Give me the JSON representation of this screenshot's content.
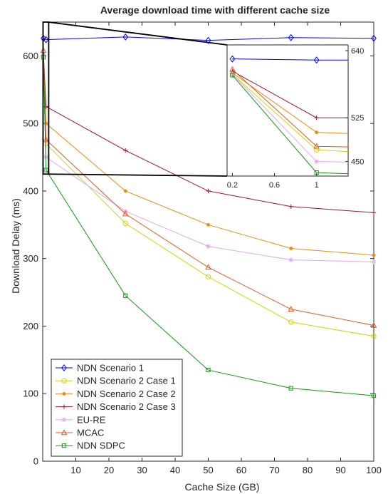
{
  "chart_data": {
    "type": "line",
    "title": "Average download time with different cache size",
    "xlabel": "Cache Size (GB)",
    "ylabel": "Download Delay (ms)",
    "xlim": [
      0,
      100
    ],
    "ylim": [
      0,
      650
    ],
    "xticks": [
      10,
      20,
      30,
      40,
      50,
      60,
      70,
      80,
      90,
      100
    ],
    "yticks": [
      0,
      100,
      200,
      300,
      400,
      500,
      600
    ],
    "grid": false,
    "legend_position": "bottom-left",
    "x": [
      0.2,
      1,
      25,
      50,
      75,
      100
    ],
    "series": [
      {
        "name": "NDN Scenario 1",
        "color": "#0000ff",
        "marker": "diamond",
        "values": [
          626,
          624,
          628,
          623,
          627,
          626
        ]
      },
      {
        "name": "NDN Scenario 2 Case 1",
        "color": "#d4d400",
        "marker": "circle",
        "values": [
          600,
          470,
          352,
          273,
          206,
          185
        ]
      },
      {
        "name": "NDN Scenario 2 Case 2",
        "color": "#ee8a0f",
        "marker": "dot",
        "values": [
          602,
          500,
          400,
          350,
          315,
          305
        ]
      },
      {
        "name": "NDN Scenario 2 Case 3",
        "color": "#a2142f",
        "marker": "plus",
        "values": [
          605,
          525,
          460,
          400,
          377,
          368
        ]
      },
      {
        "name": "EU-RE",
        "color": "#e0a8ee",
        "marker": "star",
        "values": [
          600,
          450,
          370,
          318,
          298,
          295
        ]
      },
      {
        "name": "MCAC",
        "color": "#e05b23",
        "marker": "triangle",
        "values": [
          608,
          476,
          366,
          287,
          225,
          201
        ]
      },
      {
        "name": "NDN SDPC",
        "color": "#119911",
        "marker": "square",
        "values": [
          598,
          431,
          245,
          135,
          108,
          97
        ]
      }
    ],
    "inset": {
      "xlim": [
        0.15,
        1.3
      ],
      "ylim": [
        425,
        650
      ],
      "xticks": [
        0.2,
        0.6,
        1
      ],
      "yticks": [
        450,
        525,
        640
      ],
      "x": [
        0.2,
        1,
        1.3
      ],
      "values": [
        [
          626,
          624,
          624
        ],
        [
          600,
          470,
          467
        ],
        [
          602,
          500,
          498
        ],
        [
          605,
          525,
          525
        ],
        [
          600,
          450,
          449
        ],
        [
          608,
          476,
          475
        ],
        [
          598,
          431,
          429
        ]
      ]
    }
  }
}
